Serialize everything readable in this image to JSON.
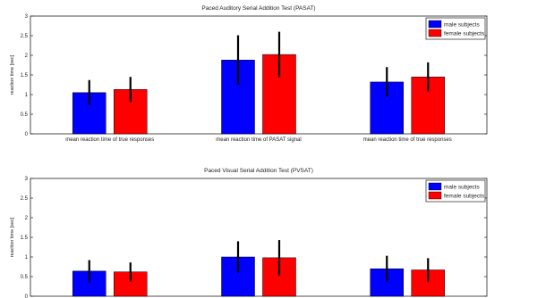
{
  "chart_data": [
    {
      "type": "bar",
      "title": "Paced Auditory Serial Addition Test (PASAT)",
      "ylabel": "reaction time [sec]",
      "ylim": [
        0,
        3
      ],
      "yticks": [
        "0",
        "0.5",
        "1",
        "1.5",
        "2",
        "2.5",
        "3"
      ],
      "categories": [
        "mean reaction time of true responses",
        "mean reaction time of PASAT signal",
        "mean reaction time of true responses"
      ],
      "series": [
        {
          "name": "male subjects",
          "color": "#0000ff",
          "values": [
            1.05,
            1.88,
            1.32
          ],
          "errors": [
            0.32,
            0.63,
            0.38
          ]
        },
        {
          "name": "female subjects",
          "color": "#ff0000",
          "values": [
            1.13,
            2.02,
            1.45
          ],
          "errors": [
            0.32,
            0.58,
            0.37
          ]
        }
      ],
      "legend": "top-right"
    },
    {
      "type": "bar",
      "title": "Paced Visual Serial Addition Test (PVSAT)",
      "ylabel": "reaction time [sec]",
      "ylim": [
        0,
        3
      ],
      "yticks": [
        "0",
        "0.5",
        "1",
        "1.5",
        "2",
        "2.5",
        "3"
      ],
      "categories": [
        "",
        "",
        ""
      ],
      "series": [
        {
          "name": "male subjects",
          "color": "#0000ff",
          "values": [
            0.64,
            1.0,
            0.7
          ],
          "errors": [
            0.28,
            0.4,
            0.33
          ]
        },
        {
          "name": "female subjects",
          "color": "#ff0000",
          "values": [
            0.62,
            0.98,
            0.67
          ],
          "errors": [
            0.24,
            0.45,
            0.3
          ]
        }
      ],
      "legend": "top-right"
    }
  ]
}
